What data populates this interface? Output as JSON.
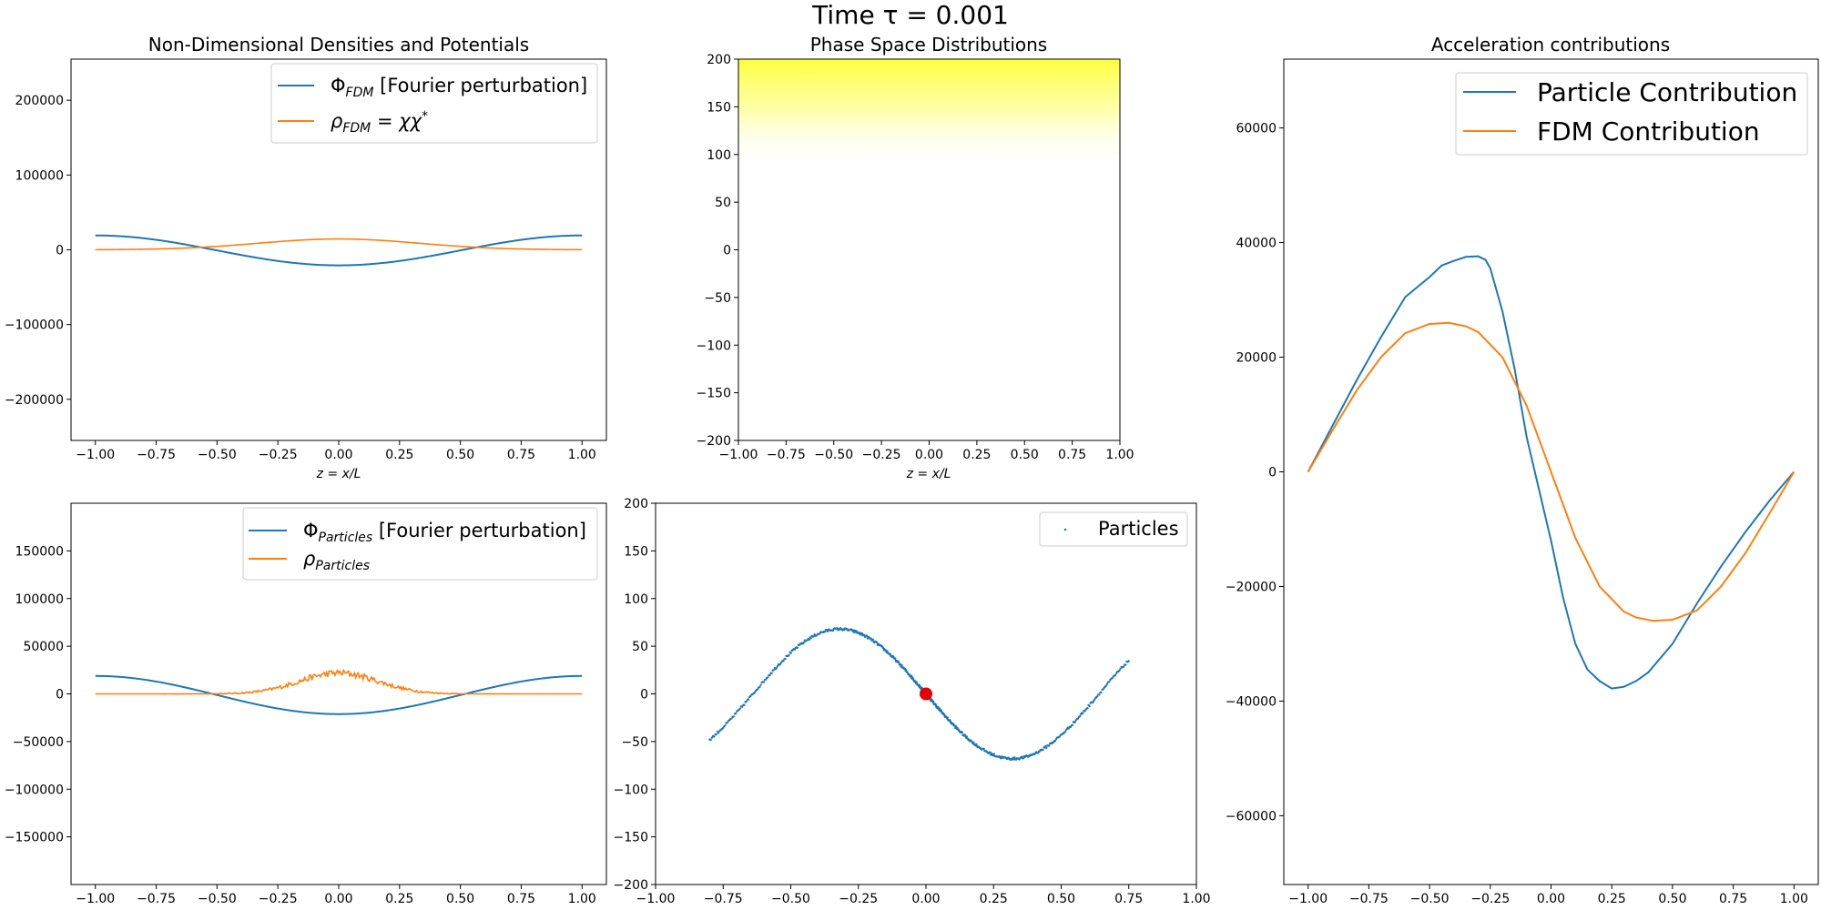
{
  "figure": {
    "suptitle": "Time τ = 0.001"
  },
  "colors": {
    "blue": "#1f77b4",
    "orange": "#ff7f0e",
    "yellow": "#ffff33",
    "marker_red": "#e50000"
  },
  "chart_data": [
    {
      "id": "densities",
      "type": "line",
      "title": "Non-Dimensional Densities and Potentials",
      "xlabel": "z = x/L",
      "ylabel": "",
      "xlim": [
        -1.1,
        1.1
      ],
      "ylim": [
        -255000,
        255000
      ],
      "xticks": [
        -1.0,
        -0.75,
        -0.5,
        -0.25,
        0.0,
        0.25,
        0.5,
        0.75,
        1.0
      ],
      "xtick_labels": [
        "−1.00",
        "−0.75",
        "−0.50",
        "−0.25",
        "0.00",
        "0.25",
        "0.50",
        "0.75",
        "1.00"
      ],
      "yticks": [
        -200000,
        -100000,
        0,
        100000,
        200000
      ],
      "ytick_labels": [
        "−200000",
        "−100000",
        "0",
        "100000",
        "200000"
      ],
      "legend_position": "top-right",
      "series": [
        {
          "name": "Φ_FDM [Fourier perturbation]",
          "color": "#1f77b4",
          "kind": "cos",
          "amplitude": -20000,
          "offset": -800
        },
        {
          "name": "ρ_FDM = χχ*",
          "color": "#ff7f0e",
          "kind": "gauss",
          "amplitude": 14500,
          "sigma": 0.33,
          "offset": 0
        }
      ],
      "legend": [
        "Φ",
        "FDM",
        " [Fourier perturbation]",
        "ρ",
        "FDM",
        " = χχ",
        "*"
      ]
    },
    {
      "id": "phase_fdm",
      "type": "heatmap",
      "title": "Phase Space Distributions",
      "xlabel": "z = x/L",
      "ylabel": "",
      "xlim": [
        -1.0,
        1.0
      ],
      "ylim": [
        -200,
        200
      ],
      "xticks": [
        -1.0,
        -0.75,
        -0.5,
        -0.25,
        0.0,
        0.25,
        0.5,
        0.75,
        1.0
      ],
      "xtick_labels": [
        "−1.00",
        "−0.75",
        "−0.50",
        "−0.25",
        "0.00",
        "0.25",
        "0.50",
        "0.75",
        "1.00"
      ],
      "yticks": [
        -200,
        -150,
        -100,
        -50,
        0,
        50,
        100,
        150,
        200
      ],
      "ytick_labels": [
        "−200",
        "−150",
        "−100",
        "−50",
        "0",
        "50",
        "100",
        "150",
        "200"
      ],
      "note_region": {
        "v_start_edges": 88,
        "v_start_center": 100,
        "v_full": 200
      }
    },
    {
      "id": "acceleration",
      "type": "line",
      "title": "Acceleration contributions",
      "xlabel": "",
      "ylabel": "",
      "xlim": [
        -1.1,
        1.1
      ],
      "ylim": [
        -72000,
        72000
      ],
      "xticks": [
        -1.0,
        -0.75,
        -0.5,
        -0.25,
        0.0,
        0.25,
        0.5,
        0.75,
        1.0
      ],
      "xtick_labels": [
        "−1.00",
        "−0.75",
        "−0.50",
        "−0.25",
        "0.00",
        "0.25",
        "0.50",
        "0.75",
        "1.00"
      ],
      "yticks": [
        -60000,
        -40000,
        -20000,
        0,
        20000,
        40000,
        60000
      ],
      "ytick_labels": [
        "−60000",
        "−40000",
        "−20000",
        "0",
        "20000",
        "40000",
        "60000"
      ],
      "legend_position": "top-right",
      "series": [
        {
          "name": "Particle Contribution",
          "color": "#1f77b4",
          "x": [
            -1.0,
            -0.9,
            -0.8,
            -0.7,
            -0.6,
            -0.5,
            -0.45,
            -0.4,
            -0.35,
            -0.3,
            -0.27,
            -0.25,
            -0.2,
            -0.15,
            -0.1,
            -0.05,
            0.0,
            0.05,
            0.1,
            0.15,
            0.2,
            0.25,
            0.3,
            0.35,
            0.4,
            0.5,
            0.6,
            0.7,
            0.8,
            0.9,
            1.0
          ],
          "y": [
            0,
            8000,
            16000,
            23500,
            30500,
            34000,
            36000,
            36800,
            37500,
            37600,
            37000,
            35500,
            28000,
            18000,
            6000,
            -3000,
            -12000,
            -22000,
            -30000,
            -34500,
            -36500,
            -37800,
            -37500,
            -36500,
            -35000,
            -30000,
            -23000,
            -16500,
            -10500,
            -5000,
            0
          ]
        },
        {
          "name": "FDM Contribution",
          "color": "#ff7f0e",
          "x": [
            -1.0,
            -0.9,
            -0.8,
            -0.7,
            -0.6,
            -0.5,
            -0.42,
            -0.35,
            -0.3,
            -0.2,
            -0.1,
            0.0,
            0.1,
            0.2,
            0.3,
            0.35,
            0.42,
            0.5,
            0.6,
            0.7,
            0.8,
            0.9,
            1.0
          ],
          "y": [
            0,
            7200,
            14200,
            20000,
            24200,
            25800,
            26000,
            25400,
            24400,
            20000,
            11500,
            0,
            -11500,
            -20000,
            -24400,
            -25400,
            -26000,
            -25800,
            -24200,
            -20000,
            -14200,
            -7200,
            0
          ]
        }
      ]
    },
    {
      "id": "particle_potential",
      "type": "line",
      "title": "",
      "xlabel": "",
      "ylabel": "",
      "xlim": [
        -1.1,
        1.1
      ],
      "ylim": [
        -200000,
        200000
      ],
      "xticks": [
        -1.0,
        -0.75,
        -0.5,
        -0.25,
        0.0,
        0.25,
        0.5,
        0.75,
        1.0
      ],
      "xtick_labels": [
        "−1.00",
        "−0.75",
        "−0.50",
        "−0.25",
        "0.00",
        "0.25",
        "0.50",
        "0.75",
        "1.00"
      ],
      "yticks": [
        -150000,
        -100000,
        -50000,
        0,
        50000,
        100000,
        150000
      ],
      "ytick_labels": [
        "−150000",
        "−100000",
        "−50000",
        "0",
        "50000",
        "100000",
        "150000"
      ],
      "legend_position": "top-right",
      "series": [
        {
          "name": "Φ_Particles [Fourier perturbation]",
          "color": "#1f77b4",
          "kind": "cos",
          "amplitude": -20000,
          "offset": -1200
        },
        {
          "name": "ρ_Particles",
          "color": "#ff7f0e",
          "kind": "noisy_gauss",
          "amplitude": 22000,
          "sigma": 0.16,
          "noise": 3500
        }
      ],
      "legend": [
        "Φ",
        "Particles",
        " [Fourier perturbation]",
        "ρ",
        "Particles"
      ]
    },
    {
      "id": "particle_phase",
      "type": "scatter",
      "title": "",
      "xlabel": "",
      "ylabel": "",
      "xlim": [
        -1.0,
        1.0
      ],
      "ylim": [
        -200,
        200
      ],
      "xticks": [
        -1.0,
        -0.75,
        -0.5,
        -0.25,
        0.0,
        0.25,
        0.5,
        0.75,
        1.0
      ],
      "xtick_labels": [
        "−1.00",
        "−0.75",
        "−0.50",
        "−0.25",
        "0.00",
        "0.25",
        "0.50",
        "0.75",
        "1.00"
      ],
      "yticks": [
        -200,
        -150,
        -100,
        -50,
        0,
        50,
        100,
        150,
        200
      ],
      "ytick_labels": [
        "−200",
        "−150",
        "−100",
        "−50",
        "0",
        "50",
        "100",
        "150",
        "200"
      ],
      "legend_position": "top-right",
      "series": [
        {
          "name": "Particles",
          "color": "#1f77b4",
          "curve": "v = -68 sin(z*π/0.64)",
          "z_range": [
            -0.8,
            0.75
          ],
          "count": 620
        }
      ],
      "marker": {
        "x": 0.0,
        "y": 0.0,
        "color": "#e50000"
      }
    }
  ]
}
